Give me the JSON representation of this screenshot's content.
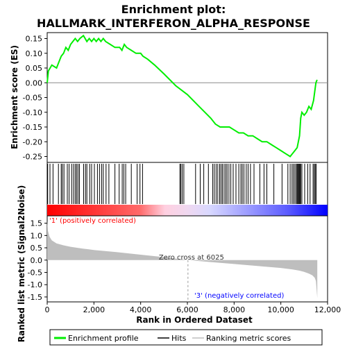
{
  "chart_data": {
    "type": "line",
    "title_line1": "Enrichment plot:",
    "title_line2": "HALLMARK_INTERFERON_ALPHA_RESPONSE",
    "x_axis_label": "Rank in Ordered Dataset",
    "x_range": [
      0,
      12000
    ],
    "x_ticks": [
      "0",
      "2,000",
      "4,000",
      "6,000",
      "8,000",
      "10,000",
      "12,000"
    ],
    "x_tick_values": [
      0,
      2000,
      4000,
      6000,
      8000,
      10000,
      12000
    ],
    "top_panel": {
      "ylabel": "Enrichment score (ES)",
      "ylim": [
        -0.27,
        0.17
      ],
      "y_ticks": [
        "0.15",
        "0.10",
        "0.05",
        "0.00",
        "-0.05",
        "-0.10",
        "-0.15",
        "-0.20",
        "-0.25"
      ],
      "y_tick_values": [
        0.15,
        0.1,
        0.05,
        0.0,
        -0.05,
        -0.1,
        -0.15,
        -0.2,
        -0.25
      ],
      "series": [
        {
          "name": "Enrichment profile",
          "color": "#00ee00",
          "x": [
            0,
            50,
            200,
            400,
            500,
            600,
            700,
            800,
            900,
            1000,
            1100,
            1200,
            1300,
            1400,
            1550,
            1700,
            1800,
            1900,
            2000,
            2100,
            2200,
            2300,
            2400,
            2500,
            2700,
            2900,
            3100,
            3200,
            3300,
            3400,
            3600,
            3800,
            4000,
            4100,
            4300,
            4600,
            5000,
            5500,
            6000,
            6500,
            7000,
            7200,
            7400,
            7600,
            7800,
            8000,
            8200,
            8400,
            8600,
            8800,
            9000,
            9200,
            9400,
            9600,
            9800,
            10000,
            10200,
            10400,
            10500,
            10600,
            10700,
            10800,
            10850,
            10900,
            11000,
            11100,
            11200,
            11300,
            11400,
            11450,
            11500,
            11550
          ],
          "y": [
            0.0,
            0.04,
            0.06,
            0.05,
            0.07,
            0.09,
            0.1,
            0.12,
            0.11,
            0.13,
            0.14,
            0.15,
            0.14,
            0.15,
            0.16,
            0.14,
            0.15,
            0.14,
            0.15,
            0.14,
            0.15,
            0.14,
            0.15,
            0.14,
            0.13,
            0.12,
            0.12,
            0.11,
            0.13,
            0.12,
            0.11,
            0.1,
            0.1,
            0.09,
            0.08,
            0.06,
            0.03,
            -0.01,
            -0.04,
            -0.08,
            -0.12,
            -0.14,
            -0.15,
            -0.15,
            -0.15,
            -0.16,
            -0.17,
            -0.17,
            -0.18,
            -0.18,
            -0.19,
            -0.2,
            -0.2,
            -0.21,
            -0.22,
            -0.23,
            -0.24,
            -0.25,
            -0.24,
            -0.23,
            -0.22,
            -0.18,
            -0.12,
            -0.1,
            -0.11,
            -0.1,
            -0.08,
            -0.09,
            -0.06,
            -0.03,
            0.0,
            0.01
          ]
        }
      ]
    },
    "hits_panel": {
      "legend_name": "Hits",
      "hit_ranks": [
        20,
        120,
        250,
        480,
        600,
        650,
        720,
        860,
        940,
        1050,
        1130,
        1200,
        1260,
        1320,
        1380,
        1560,
        1640,
        1700,
        1820,
        1900,
        2020,
        2150,
        2240,
        2330,
        2400,
        2520,
        2640,
        2900,
        3080,
        3210,
        3280,
        3360,
        3600,
        3850,
        3970,
        4080,
        5680,
        5720,
        5780,
        5850,
        6350,
        6550,
        6700,
        6900,
        7080,
        7150,
        7230,
        7300,
        7380,
        7440,
        7500,
        7570,
        7640,
        7700,
        7780,
        7860,
        7960,
        8080,
        8200,
        8290,
        8350,
        8420,
        8520,
        8600,
        8700,
        8850,
        9100,
        9280,
        9400,
        9700,
        10050,
        10300,
        10400,
        10480,
        10540,
        10600,
        10660,
        10700,
        10730,
        10760,
        10790,
        10820,
        10850,
        10900,
        11020,
        11150,
        11250,
        11380,
        11430,
        11470,
        11510
      ]
    },
    "bottom_panel": {
      "ylabel": "Ranked list metric (Signal2Noise)",
      "ylim": [
        -1.7,
        1.8
      ],
      "y_ticks": [
        "1.5",
        "1.0",
        "0.5",
        "0.0",
        "-0.5",
        "-1.0",
        "-1.5"
      ],
      "y_tick_values": [
        1.5,
        1.0,
        0.5,
        0.0,
        -0.5,
        -1.0,
        -1.5
      ],
      "legend_name": "Ranking metric scores",
      "area_color": "#bebebe",
      "x": [
        0,
        30,
        100,
        200,
        400,
        700,
        1000,
        1500,
        2000,
        3000,
        4000,
        5000,
        6025,
        7000,
        8000,
        9000,
        10000,
        10500,
        10800,
        11000,
        11200,
        11350,
        11450,
        11500,
        11530,
        11560
      ],
      "y": [
        1.6,
        1.2,
        0.95,
        0.8,
        0.68,
        0.6,
        0.54,
        0.47,
        0.41,
        0.32,
        0.22,
        0.12,
        0.0,
        -0.08,
        -0.16,
        -0.24,
        -0.32,
        -0.38,
        -0.43,
        -0.48,
        -0.55,
        -0.62,
        -0.72,
        -0.85,
        -1.2,
        -1.55
      ]
    },
    "zero_cross_label": "Zero cross at 6025",
    "zero_cross": 6025,
    "positive_label": "'1' (positively correlated)",
    "negative_label": "'3' (negatively correlated)",
    "legend": [
      "Enrichment profile",
      "Hits",
      "Ranking metric scores"
    ],
    "colors": {
      "profile": "#00ee00",
      "positive": "#ff0000",
      "negative": "#0000ff",
      "positive_label": "#ff0000",
      "negative_label": "#0000ff",
      "metric_area": "#bebebe"
    }
  }
}
